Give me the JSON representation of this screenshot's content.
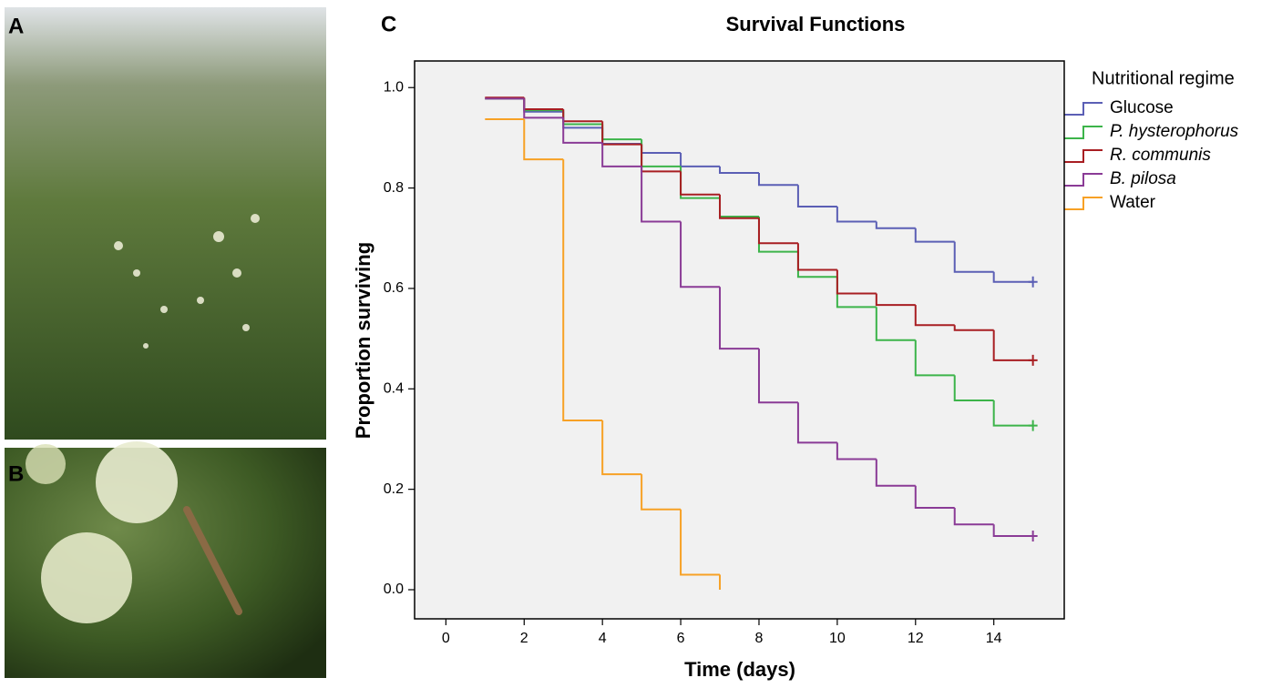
{
  "panel_labels": [
    "A",
    "B",
    "C"
  ],
  "chart_data": {
    "type": "step",
    "title": "Survival Functions",
    "x_label": "Time (days)",
    "y_label": "Proportion surviving",
    "legend_title": "Nutritional regime",
    "legend": "outside-right",
    "xlim": [
      -0.8,
      15.8
    ],
    "xticks": [
      0,
      2,
      4,
      6,
      8,
      10,
      12,
      14
    ],
    "ylim": [
      -0.058,
      1.053
    ],
    "yticks": [
      {
        "value": 0,
        "label": "0.0"
      },
      {
        "value": 0.2,
        "label": "0.2"
      },
      {
        "value": 0.4,
        "label": "0.4"
      },
      {
        "value": 0.6,
        "label": "0.6"
      },
      {
        "value": 0.8,
        "label": "0.8"
      },
      {
        "value": 1,
        "label": "1.0"
      }
    ],
    "background": "#f1f1f1",
    "series": [
      {
        "name": "Glucose",
        "color": "#5b5fb5",
        "font_style": "normal",
        "censored_at_end": true,
        "x": [
          1,
          2,
          3,
          4,
          5,
          6,
          7,
          8,
          9,
          10,
          11,
          12,
          13,
          14,
          15
        ],
        "values": [
          0.978,
          0.952,
          0.92,
          0.888,
          0.87,
          0.843,
          0.83,
          0.806,
          0.763,
          0.733,
          0.72,
          0.693,
          0.633,
          0.613,
          0.613
        ]
      },
      {
        "name": "P. hysterophorus",
        "color": "#3cb44a",
        "font_style": "italic",
        "censored_at_end": true,
        "x": [
          1,
          2,
          3,
          4,
          5,
          6,
          7,
          8,
          9,
          10,
          11,
          12,
          13,
          14,
          15
        ],
        "values": [
          0.978,
          0.955,
          0.927,
          0.897,
          0.843,
          0.78,
          0.743,
          0.673,
          0.623,
          0.563,
          0.497,
          0.427,
          0.377,
          0.327,
          0.327
        ]
      },
      {
        "name": "R. communis",
        "color": "#a81e22",
        "font_style": "italic",
        "censored_at_end": true,
        "x": [
          1,
          2,
          3,
          4,
          5,
          6,
          7,
          8,
          9,
          10,
          11,
          12,
          13,
          14,
          15
        ],
        "values": [
          0.98,
          0.957,
          0.933,
          0.887,
          0.833,
          0.787,
          0.74,
          0.69,
          0.637,
          0.59,
          0.567,
          0.527,
          0.517,
          0.457,
          0.457
        ]
      },
      {
        "name": "B. pilosa",
        "color": "#8a3b96",
        "font_style": "italic",
        "censored_at_end": true,
        "x": [
          1,
          2,
          3,
          4,
          5,
          6,
          7,
          8,
          9,
          10,
          11,
          12,
          13,
          14,
          15
        ],
        "values": [
          0.978,
          0.94,
          0.89,
          0.843,
          0.733,
          0.603,
          0.48,
          0.373,
          0.293,
          0.26,
          0.207,
          0.163,
          0.13,
          0.107,
          0.107
        ]
      },
      {
        "name": "Water",
        "color": "#f7a125",
        "font_style": "normal",
        "censored_at_end": false,
        "x": [
          1,
          2,
          3,
          4,
          5,
          6,
          7
        ],
        "values": [
          0.937,
          0.857,
          0.337,
          0.23,
          0.16,
          0.03,
          0
        ]
      }
    ]
  }
}
